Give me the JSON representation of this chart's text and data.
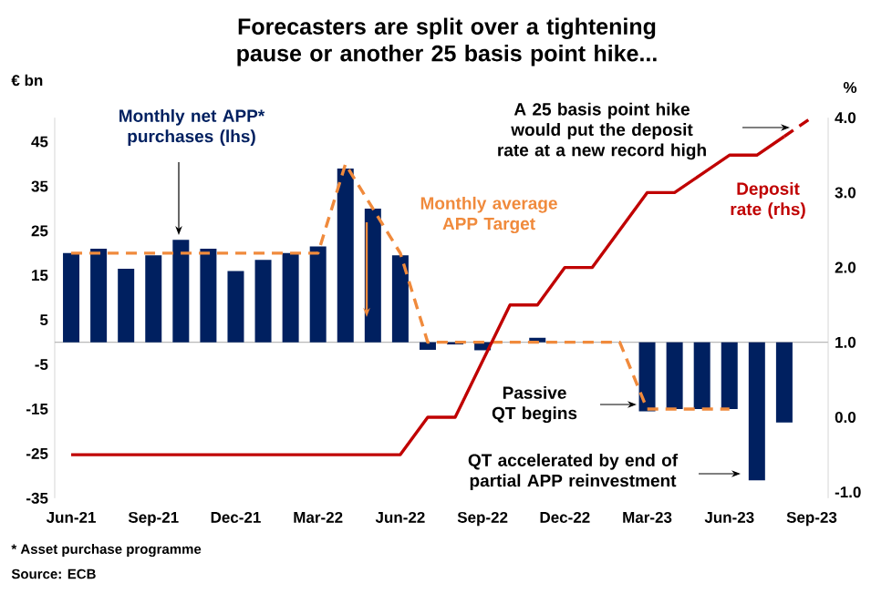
{
  "chart_data": {
    "type": "bar",
    "title": "Forecasters are split over a tightening pause or another 25 basis point hike...",
    "ylabel": "€ bn",
    "y2label": "%",
    "categories": [
      "Jun-21",
      null,
      null,
      "Sep-21",
      null,
      null,
      "Dec-21",
      null,
      null,
      "Mar-22",
      null,
      null,
      "Jun-22",
      null,
      null,
      "Sep-22",
      null,
      null,
      "Dec-22",
      null,
      null,
      "Mar-23",
      null,
      null,
      "Jun-23",
      null,
      null,
      "Sep-23"
    ],
    "series": [
      {
        "name": "Monthly net APP* purchases (lhs)",
        "color": "#002060",
        "values": [
          20,
          21,
          16.5,
          19.5,
          23,
          21,
          16,
          18.5,
          20,
          21.5,
          39,
          30,
          19.5,
          -1.7,
          -0.5,
          -1.8,
          null,
          1,
          null,
          null,
          null,
          -15.5,
          -15,
          -15,
          -15,
          -31,
          -18,
          null
        ]
      },
      {
        "name": "Monthly average APP Target",
        "type": "line",
        "color": "#f08a3c",
        "line_style": "dashed",
        "values": [
          20,
          20,
          20,
          20,
          20,
          20,
          20,
          20,
          20,
          20,
          40,
          30,
          20,
          0,
          0,
          0,
          0,
          0,
          0,
          0,
          0,
          -15,
          -15,
          -15,
          -15,
          null,
          null,
          null
        ]
      },
      {
        "name": "Deposit rate (rhs)",
        "type": "line",
        "axis": "y2",
        "color": "#c00000",
        "values": [
          -0.5,
          -0.5,
          -0.5,
          -0.5,
          -0.5,
          -0.5,
          -0.5,
          -0.5,
          -0.5,
          -0.5,
          -0.5,
          -0.5,
          -0.5,
          0,
          0,
          0.75,
          1.5,
          1.5,
          2.0,
          2.0,
          2.5,
          3.0,
          3.0,
          3.25,
          3.5,
          3.5,
          3.75,
          null
        ]
      },
      {
        "type": "line",
        "axis": "y2",
        "color": "#c00000",
        "line_style": "dashed",
        "values": [
          null,
          null,
          null,
          null,
          null,
          null,
          null,
          null,
          null,
          null,
          null,
          null,
          null,
          null,
          null,
          null,
          null,
          null,
          null,
          null,
          null,
          null,
          null,
          null,
          null,
          null,
          3.75,
          4.0
        ]
      }
    ],
    "ylim": [
      -35,
      50.4
    ],
    "yticks": [
      -35,
      -25,
      -15,
      -5,
      5,
      15,
      25,
      35,
      45
    ],
    "y2lim": [
      -1.08,
      4
    ],
    "y2ticks": [
      {
        "value": -1,
        "label": "-1.0"
      },
      {
        "value": 0,
        "label": "0.0"
      },
      {
        "value": 1,
        "label": "1.0"
      },
      {
        "value": 2,
        "label": "2.0"
      },
      {
        "value": 3,
        "label": "3.0"
      },
      {
        "value": 4,
        "label": "4.0"
      }
    ],
    "annotations": [
      "A 25 basis point hike would put the deposit rate at a new record high",
      "Passive QT begins",
      "QT accelerated by end of partial APP reinvestment",
      "* Asset purchase programme",
      "Source: ECB"
    ]
  }
}
